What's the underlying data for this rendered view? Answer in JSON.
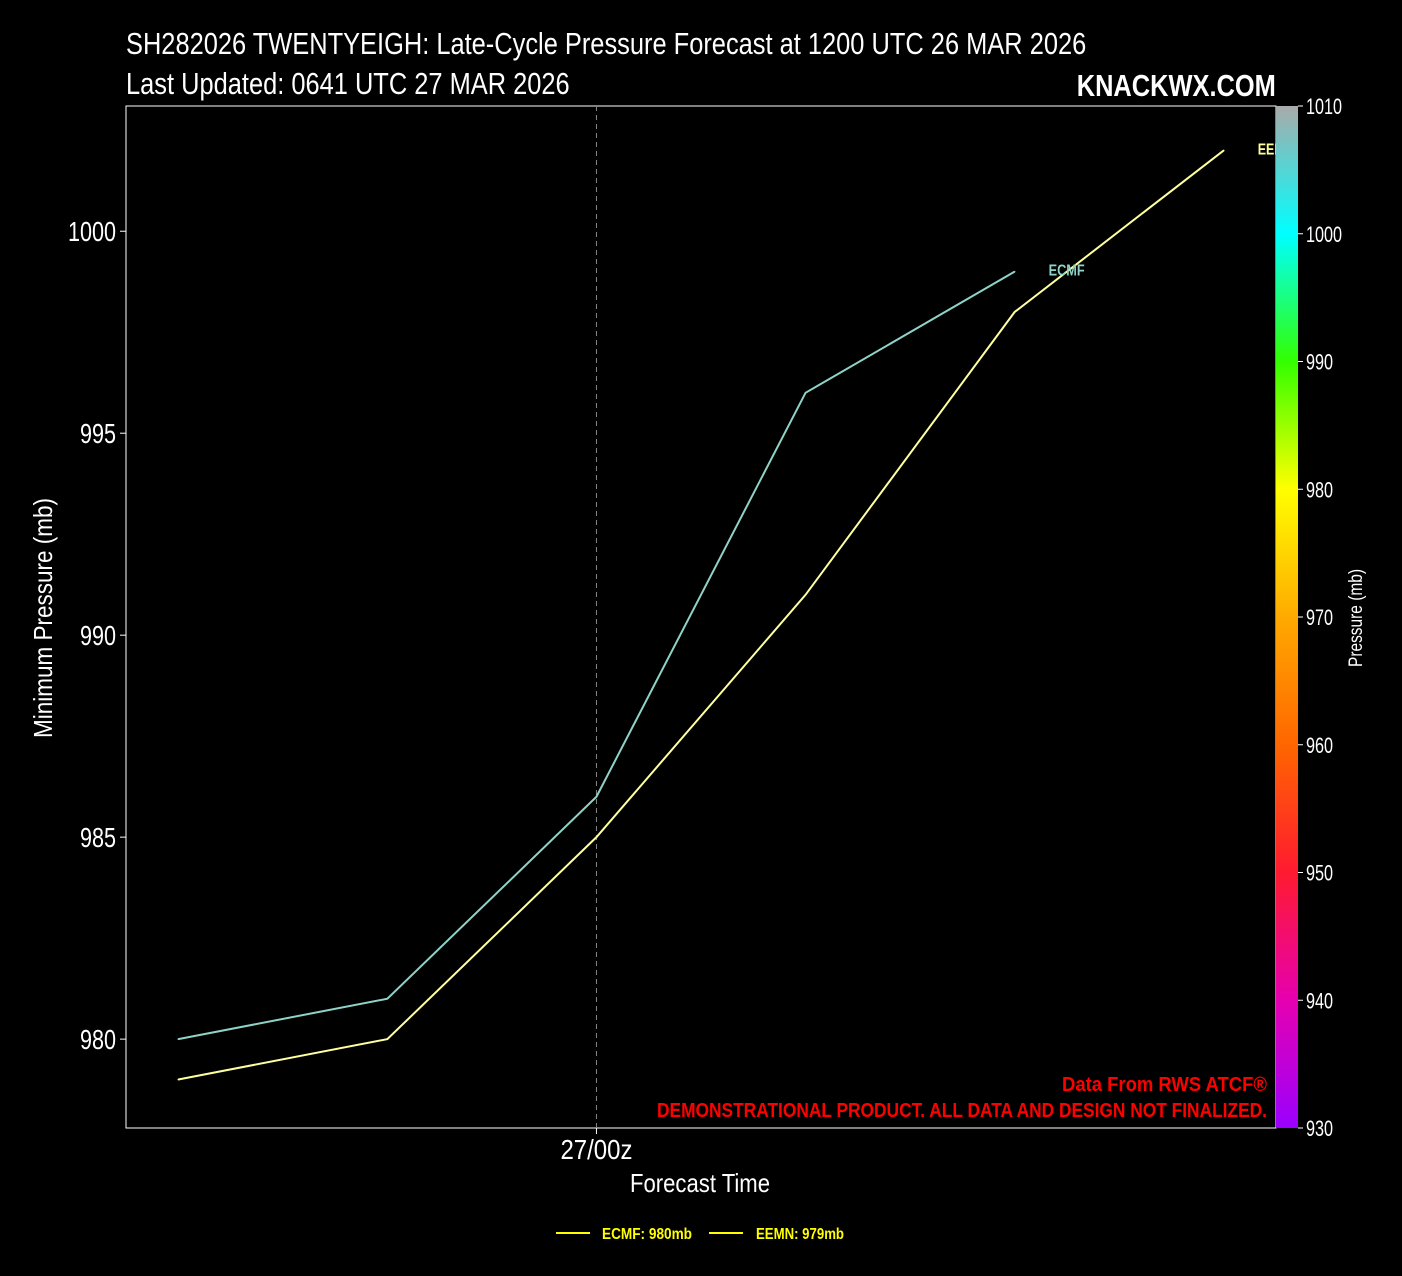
{
  "header": {
    "title_line1": "SH282026 TWENTYEIGH: Late-Cycle Pressure Forecast at 1200 UTC 26 MAR 2026",
    "title_line2": "Last Updated: 0641 UTC 27 MAR 2026",
    "brand": "KNACKWX.COM"
  },
  "notes": {
    "source": "Data From RWS ATCF®",
    "disclaimer": "DEMONSTRATIONAL PRODUCT. ALL DATA AND DESIGN NOT FINALIZED."
  },
  "colors": {
    "background": "#000000",
    "ecmf": "#8fd3c8",
    "eemn": "#ffffa0",
    "legend_text": "#ffff00",
    "notes": "#ff0000"
  },
  "chart_data": {
    "type": "line",
    "xlabel": "Forecast Time",
    "ylabel": "Minimum Pressure (mb)",
    "x_ticks": [
      {
        "x": 12,
        "label": "27/00z"
      }
    ],
    "x": [
      0,
      6,
      12,
      18,
      24,
      30
    ],
    "xlim": [
      -1.5,
      31.5
    ],
    "ylim": [
      977.8,
      1003.1
    ],
    "yticks": [
      980,
      985,
      990,
      995,
      1000
    ],
    "series": [
      {
        "name": "ECMF",
        "x": [
          0,
          6,
          12,
          18,
          24
        ],
        "values": [
          980,
          981,
          986,
          996,
          999
        ],
        "end_label": "ECMF",
        "legend": "ECMF: 980mb"
      },
      {
        "name": "EEMN",
        "x": [
          0,
          6,
          12,
          18,
          24,
          30
        ],
        "values": [
          979,
          980,
          985,
          991,
          998,
          1002
        ],
        "end_label": "EEMN",
        "legend": "EEMN: 979mb"
      }
    ],
    "vline_x": 12,
    "colorbar": {
      "label": "Pressure (mb)",
      "min": 930,
      "max": 1010,
      "ticks": [
        930,
        940,
        950,
        960,
        970,
        980,
        990,
        1000,
        1010
      ],
      "stops": [
        {
          "v": 930,
          "c": "#9a00ff"
        },
        {
          "v": 940,
          "c": "#e600b0"
        },
        {
          "v": 950,
          "c": "#ff1a30"
        },
        {
          "v": 960,
          "c": "#ff6600"
        },
        {
          "v": 970,
          "c": "#ffaa00"
        },
        {
          "v": 980,
          "c": "#ffff00"
        },
        {
          "v": 990,
          "c": "#33ff00"
        },
        {
          "v": 1000,
          "c": "#00ffff"
        },
        {
          "v": 1010,
          "c": "#aaaaaa"
        }
      ]
    },
    "grid": false,
    "legend_position": "bottom-center"
  }
}
